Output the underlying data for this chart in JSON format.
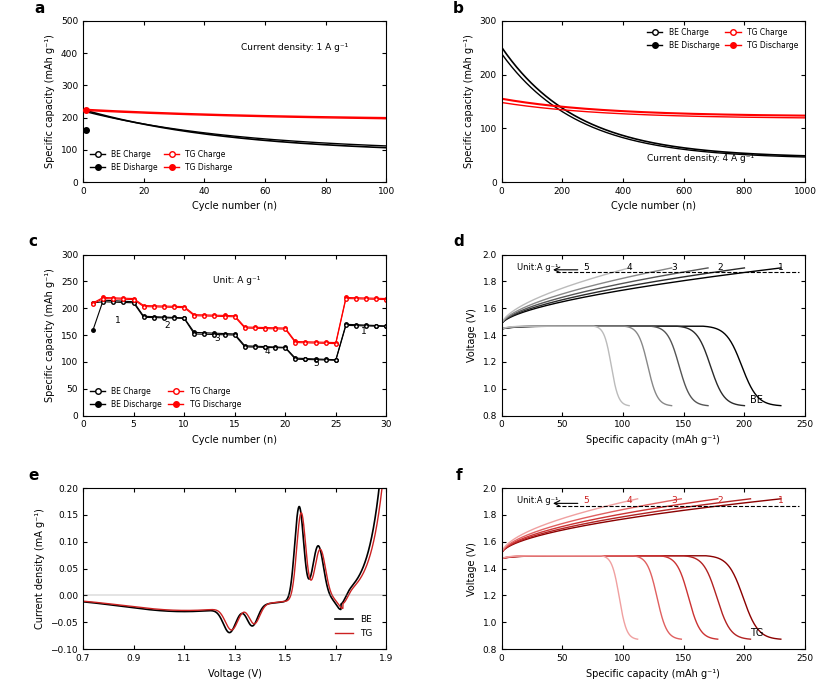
{
  "fig_width": 8.3,
  "fig_height": 6.98,
  "panel_a": {
    "xlabel": "Cycle number (n)",
    "ylabel": "Specific capacity (mAh g⁻¹)",
    "ylim": [
      0,
      500
    ],
    "xlim": [
      0,
      100
    ],
    "yticks": [
      0,
      100,
      200,
      300,
      400,
      500
    ],
    "xticks": [
      0,
      20,
      40,
      60,
      80,
      100
    ],
    "annotation": "Current density: 1 A g⁻¹"
  },
  "panel_b": {
    "xlabel": "Cycle number (n)",
    "ylabel": "Specific capacity (mAh g⁻¹)",
    "ylim": [
      0,
      300
    ],
    "xlim": [
      0,
      1000
    ],
    "yticks": [
      0,
      100,
      200,
      300
    ],
    "xticks": [
      0,
      200,
      400,
      600,
      800,
      1000
    ],
    "annotation": "Current density: 4 A g⁻¹"
  },
  "panel_c": {
    "xlabel": "Cycle number (n)",
    "ylabel": "Specific capacity (mAh g⁻¹)",
    "ylim": [
      0,
      300
    ],
    "xlim": [
      0,
      30
    ],
    "yticks": [
      0,
      50,
      100,
      150,
      200,
      250,
      300
    ],
    "xticks": [
      0,
      5,
      10,
      15,
      20,
      25,
      30
    ],
    "unit_label": "Unit: A g⁻¹"
  },
  "panel_d": {
    "xlabel": "Specific capacity (mAh g⁻¹)",
    "ylabel": "Voltage (V)",
    "ylim": [
      0.8,
      2.0
    ],
    "xlim": [
      0,
      250
    ],
    "yticks": [
      0.8,
      1.0,
      1.2,
      1.4,
      1.6,
      1.8,
      2.0
    ],
    "xticks": [
      0,
      50,
      100,
      150,
      200,
      250
    ],
    "label": "BE",
    "unit_label": "Unit:A g⁻¹",
    "gray_colors": [
      "#000000",
      "#2a2a2a",
      "#555555",
      "#888888",
      "#bbbbbb"
    ],
    "caps": [
      230,
      200,
      170,
      140,
      105
    ]
  },
  "panel_e": {
    "xlabel": "Voltage (V)",
    "ylabel": "Current density (mA g⁻¹)",
    "ylim": [
      -0.1,
      0.2
    ],
    "xlim": [
      0.7,
      1.9
    ],
    "yticks": [
      -0.1,
      -0.05,
      0.0,
      0.05,
      0.1,
      0.15,
      0.2
    ],
    "xticks": [
      0.7,
      0.9,
      1.1,
      1.3,
      1.5,
      1.7,
      1.9
    ]
  },
  "panel_f": {
    "xlabel": "Specific capacity (mAh g⁻¹)",
    "ylabel": "Voltage (V)",
    "ylim": [
      0.8,
      2.0
    ],
    "xlim": [
      0,
      250
    ],
    "yticks": [
      0.8,
      1.0,
      1.2,
      1.4,
      1.6,
      1.8,
      2.0
    ],
    "xticks": [
      0,
      50,
      100,
      150,
      200,
      250
    ],
    "label": "TG",
    "unit_label": "Unit:A g⁻¹",
    "red_colors": [
      "#8b0000",
      "#b22222",
      "#cc3333",
      "#e06060",
      "#f0a0a0"
    ],
    "caps": [
      230,
      205,
      178,
      148,
      112
    ]
  }
}
